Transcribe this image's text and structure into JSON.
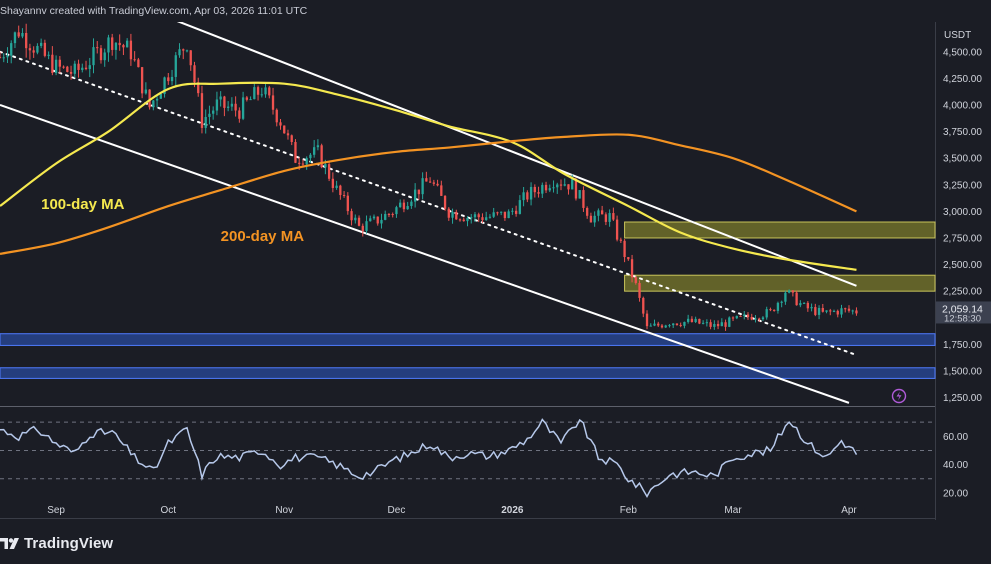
{
  "header": {
    "attribution": "Shayannv created with TradingView.com, Apr 03, 2026 11:01 UTC"
  },
  "brand": {
    "name": "TradingView",
    "logo_icon": "tradingview-logo-icon"
  },
  "colors": {
    "background": "#1b1d25",
    "up_candle": "#26a69a",
    "down_candle": "#ef5350",
    "ma100": "#f5e94f",
    "ma200": "#f39323",
    "channel": "#ffffff",
    "support_zone": "#2e59c9",
    "resistance_zone": "#7b7a2b",
    "rsi_line": "#b6c8ea",
    "price_label_bg": "#3c4150"
  },
  "chart_data": [
    {
      "type": "candlestick",
      "title": "",
      "currency_label": "USDT",
      "y_ticks": [
        "4,500.00",
        "4,250.00",
        "4,000.00",
        "3,750.00",
        "3,500.00",
        "3,250.00",
        "3,000.00",
        "2,750.00",
        "2,500.00",
        "2,250.00",
        "1,750.00",
        "1,500.00",
        "1,250.00"
      ],
      "y_tick_values": [
        4500,
        4250,
        4000,
        3750,
        3500,
        3250,
        3000,
        2750,
        2500,
        2250,
        1750,
        1500,
        1250
      ],
      "ylim": [
        1180,
        4780
      ],
      "x_ticks": [
        "Sep",
        "Oct",
        "Nov",
        "Dec",
        "2026",
        "Feb",
        "Mar",
        "Apr"
      ],
      "x_tick_dates": [
        "2025-09-01",
        "2025-10-01",
        "2025-11-01",
        "2025-12-01",
        "2026-01-01",
        "2026-02-01",
        "2026-03-01",
        "2026-04-01"
      ],
      "xlim": [
        "2025-08-17",
        "2026-04-24"
      ],
      "current_price": "2,059.14",
      "countdown": "12:58:30",
      "close_series": [
        [
          "2025-08-17",
          4450
        ],
        [
          "2025-08-22",
          4700
        ],
        [
          "2025-08-27",
          4520
        ],
        [
          "2025-09-01",
          4350
        ],
        [
          "2025-09-06",
          4300
        ],
        [
          "2025-09-11",
          4450
        ],
        [
          "2025-09-16",
          4620
        ],
        [
          "2025-09-21",
          4500
        ],
        [
          "2025-09-26",
          3980
        ],
        [
          "2025-10-01",
          4300
        ],
        [
          "2025-10-06",
          4600
        ],
        [
          "2025-10-10",
          3850
        ],
        [
          "2025-10-14",
          4000
        ],
        [
          "2025-10-20",
          3950
        ],
        [
          "2025-10-26",
          4150
        ],
        [
          "2025-10-31",
          3850
        ],
        [
          "2025-11-04",
          3500
        ],
        [
          "2025-11-10",
          3550
        ],
        [
          "2025-11-15",
          3200
        ],
        [
          "2025-11-21",
          2850
        ],
        [
          "2025-11-25",
          2900
        ],
        [
          "2025-11-30",
          3000
        ],
        [
          "2025-12-05",
          3150
        ],
        [
          "2025-12-10",
          3300
        ],
        [
          "2025-12-15",
          3000
        ],
        [
          "2025-12-20",
          2950
        ],
        [
          "2025-12-26",
          2950
        ],
        [
          "2025-12-31",
          2970
        ],
        [
          "2026-01-05",
          3150
        ],
        [
          "2026-01-12",
          3300
        ],
        [
          "2026-01-17",
          3250
        ],
        [
          "2026-01-22",
          2950
        ],
        [
          "2026-01-27",
          2950
        ],
        [
          "2026-01-31",
          2600
        ],
        [
          "2026-02-03",
          2300
        ],
        [
          "2026-02-06",
          1900
        ],
        [
          "2026-02-12",
          1960
        ],
        [
          "2026-02-18",
          1960
        ],
        [
          "2026-02-24",
          1920
        ],
        [
          "2026-03-01",
          1970
        ],
        [
          "2026-03-06",
          2020
        ],
        [
          "2026-03-11",
          2050
        ],
        [
          "2026-03-15",
          2250
        ],
        [
          "2026-03-20",
          2100
        ],
        [
          "2026-03-25",
          2040
        ],
        [
          "2026-03-30",
          2070
        ],
        [
          "2026-04-03",
          2060
        ]
      ],
      "series": [
        {
          "name": "100-day MA",
          "points": [
            [
              "2025-08-17",
              3050
            ],
            [
              "2025-09-01",
              3450
            ],
            [
              "2025-09-15",
              3750
            ],
            [
              "2025-10-01",
              4150
            ],
            [
              "2025-10-15",
              4200
            ],
            [
              "2025-11-01",
              4200
            ],
            [
              "2025-11-15",
              4100
            ],
            [
              "2025-12-01",
              3950
            ],
            [
              "2025-12-15",
              3800
            ],
            [
              "2026-01-01",
              3650
            ],
            [
              "2026-01-15",
              3350
            ],
            [
              "2026-02-01",
              3050
            ],
            [
              "2026-02-15",
              2800
            ],
            [
              "2026-03-01",
              2650
            ],
            [
              "2026-03-15",
              2550
            ],
            [
              "2026-04-03",
              2450
            ]
          ]
        },
        {
          "name": "200-day MA",
          "points": [
            [
              "2025-08-17",
              2600
            ],
            [
              "2025-09-01",
              2700
            ],
            [
              "2025-09-15",
              2850
            ],
            [
              "2025-10-01",
              3050
            ],
            [
              "2025-10-15",
              3200
            ],
            [
              "2025-11-01",
              3380
            ],
            [
              "2025-11-15",
              3480
            ],
            [
              "2025-12-01",
              3560
            ],
            [
              "2025-12-15",
              3600
            ],
            [
              "2026-01-01",
              3660
            ],
            [
              "2026-01-15",
              3700
            ],
            [
              "2026-02-01",
              3720
            ],
            [
              "2026-02-15",
              3620
            ],
            [
              "2026-03-01",
              3500
            ],
            [
              "2026-03-15",
              3300
            ],
            [
              "2026-04-03",
              3000
            ]
          ]
        }
      ],
      "channel_lines": {
        "upper": [
          [
            "2025-09-26",
            4890
          ],
          [
            "2026-04-03",
            2300
          ]
        ],
        "lower": [
          [
            "2025-08-17",
            4000
          ],
          [
            "2026-04-01",
            1200
          ]
        ],
        "median": [
          [
            "2025-08-17",
            4500
          ],
          [
            "2026-04-03",
            1650
          ]
        ]
      },
      "zones": [
        {
          "from": "2026-01-31",
          "to": "2026-04-24",
          "low": 2750,
          "high": 2900,
          "kind": "resistance"
        },
        {
          "from": "2026-01-31",
          "to": "2026-04-24",
          "low": 2250,
          "high": 2400,
          "kind": "resistance"
        },
        {
          "from": "2025-08-17",
          "to": "2026-04-24",
          "low": 1740,
          "high": 1850,
          "kind": "support"
        },
        {
          "from": "2025-08-17",
          "to": "2026-04-24",
          "low": 1430,
          "high": 1530,
          "kind": "support"
        }
      ],
      "annotations": [
        {
          "text": "100-day MA",
          "at": [
            "2025-08-28",
            3020
          ],
          "color": "#f5e94f"
        },
        {
          "text": "200-day MA",
          "at": [
            "2025-10-15",
            2720
          ],
          "color": "#f39323"
        }
      ]
    },
    {
      "type": "line",
      "title": "",
      "y_ticks": [
        "60.00",
        "40.00",
        "20.00"
      ],
      "y_tick_values": [
        60,
        40,
        20
      ],
      "ylim": [
        15,
        80
      ],
      "hlines": [
        70,
        50,
        30
      ],
      "series": [
        {
          "points": [
            [
              "2025-08-17",
              65
            ],
            [
              "2025-08-22",
              60
            ],
            [
              "2025-08-27",
              65
            ],
            [
              "2025-09-01",
              55
            ],
            [
              "2025-09-06",
              48
            ],
            [
              "2025-09-10",
              62
            ],
            [
              "2025-09-16",
              63
            ],
            [
              "2025-09-22",
              45
            ],
            [
              "2025-09-27",
              35
            ],
            [
              "2025-10-01",
              55
            ],
            [
              "2025-10-06",
              65
            ],
            [
              "2025-10-10",
              33
            ],
            [
              "2025-10-14",
              46
            ],
            [
              "2025-10-20",
              45
            ],
            [
              "2025-10-26",
              50
            ],
            [
              "2025-10-31",
              40
            ],
            [
              "2025-11-04",
              45
            ],
            [
              "2025-11-10",
              45
            ],
            [
              "2025-11-15",
              40
            ],
            [
              "2025-11-21",
              32
            ],
            [
              "2025-11-25",
              35
            ],
            [
              "2025-11-30",
              43
            ],
            [
              "2025-12-05",
              48
            ],
            [
              "2025-12-10",
              55
            ],
            [
              "2025-12-15",
              45
            ],
            [
              "2025-12-20",
              48
            ],
            [
              "2025-12-26",
              46
            ],
            [
              "2025-12-31",
              50
            ],
            [
              "2026-01-05",
              58
            ],
            [
              "2026-01-09",
              70
            ],
            [
              "2026-01-14",
              55
            ],
            [
              "2026-01-19",
              72
            ],
            [
              "2026-01-24",
              45
            ],
            [
              "2026-01-29",
              40
            ],
            [
              "2026-02-01",
              30
            ],
            [
              "2026-02-06",
              20
            ],
            [
              "2026-02-12",
              33
            ],
            [
              "2026-02-18",
              35
            ],
            [
              "2026-02-24",
              32
            ],
            [
              "2026-03-01",
              45
            ],
            [
              "2026-03-06",
              48
            ],
            [
              "2026-03-11",
              50
            ],
            [
              "2026-03-16",
              72
            ],
            [
              "2026-03-21",
              55
            ],
            [
              "2026-03-26",
              45
            ],
            [
              "2026-03-30",
              57
            ],
            [
              "2026-04-03",
              48
            ]
          ]
        }
      ]
    }
  ]
}
